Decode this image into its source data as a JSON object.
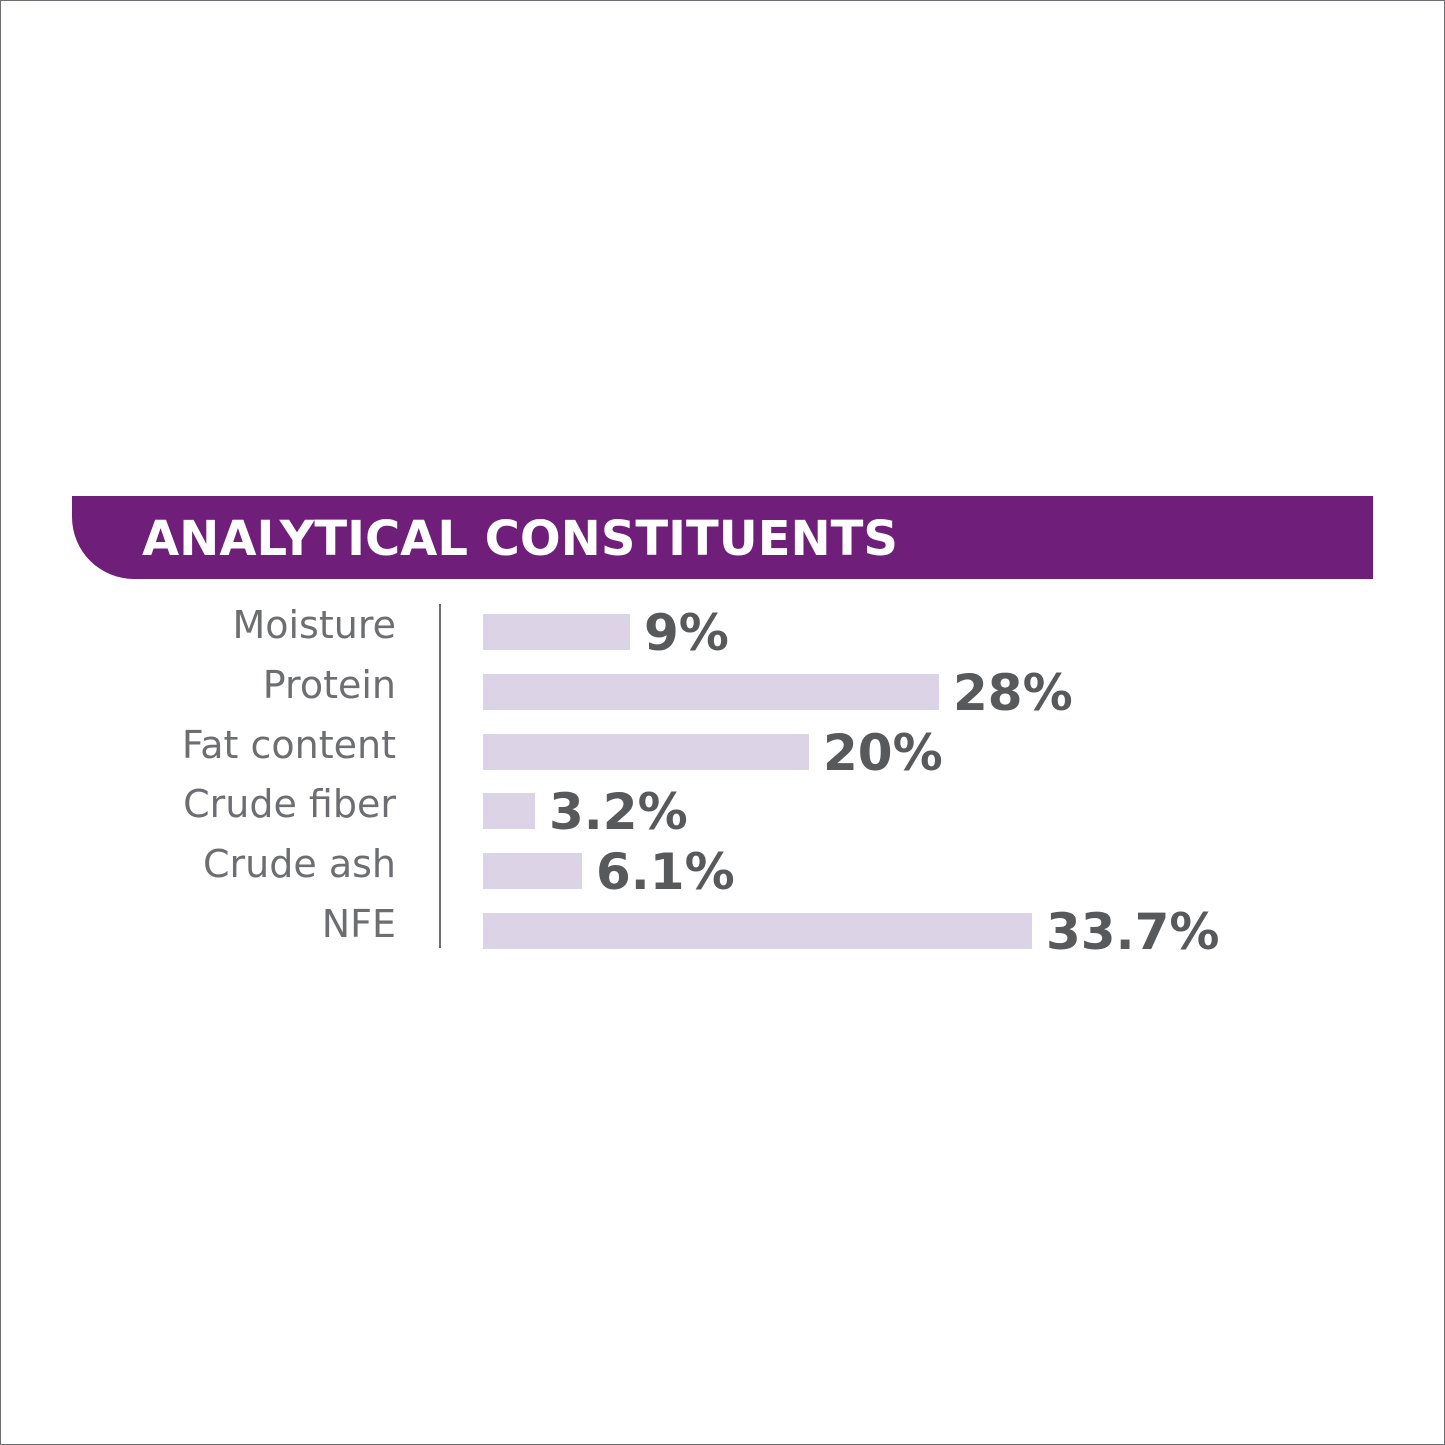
{
  "chart_data": {
    "type": "bar",
    "orientation": "horizontal",
    "title": "ANALYTICAL CONSTITUENTS",
    "categories": [
      "Moisture",
      "Protein",
      "Fat content",
      "Crude fiber",
      "Crude ash",
      "NFE"
    ],
    "values": [
      9,
      28,
      20,
      3.2,
      6.1,
      33.7
    ],
    "value_labels": [
      "9%",
      "28%",
      "20%",
      "3.2%",
      "6.1%",
      "33.7%"
    ],
    "unit": "%",
    "xlim": [
      0,
      33.7
    ],
    "grid": false,
    "legend": "none"
  },
  "colors": {
    "banner": "#6f1f7a",
    "bar": "#ddd3e6",
    "category_text": "#6d6e71",
    "value_text": "#58595b",
    "divider": "#6d6e71",
    "title_text": "#ffffff"
  }
}
